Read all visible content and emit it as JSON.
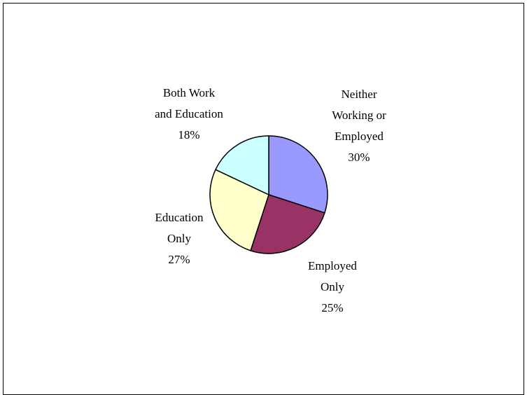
{
  "chart_data": {
    "type": "pie",
    "title": "",
    "start_angle_deg": 0,
    "direction": "clockwise",
    "slices": [
      {
        "label_lines": [
          "Neither",
          "Working or",
          "Employed"
        ],
        "percent_label": "30%",
        "value": 30,
        "color": "#9999ff"
      },
      {
        "label_lines": [
          "Employed",
          "Only"
        ],
        "percent_label": "25%",
        "value": 25,
        "color": "#993366"
      },
      {
        "label_lines": [
          "Education",
          "Only"
        ],
        "percent_label": "27%",
        "value": 27,
        "color": "#ffffcc"
      },
      {
        "label_lines": [
          "Both Work",
          "and Education"
        ],
        "percent_label": "18%",
        "value": 18,
        "color": "#ccffff"
      }
    ]
  }
}
